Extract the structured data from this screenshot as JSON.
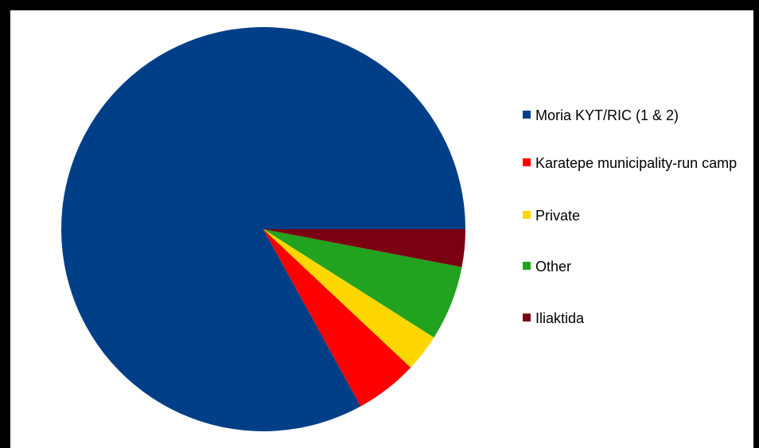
{
  "chart_data": {
    "type": "pie",
    "title": "",
    "start_angle_deg": 0,
    "direction": "counterclockwise",
    "legend_position": "right",
    "slices": [
      {
        "label": "Moria KYT/RIC (1 & 2)",
        "value": 83,
        "color": "#003f87"
      },
      {
        "label": "Karatepe municipality-run camp",
        "value": 5,
        "color": "#ff0000"
      },
      {
        "label": "Private",
        "value": 3,
        "color": "#ffd700"
      },
      {
        "label": "Other",
        "value": 6,
        "color": "#22a31f"
      },
      {
        "label": "Iliaktida",
        "value": 3,
        "color": "#7b0011"
      }
    ]
  }
}
